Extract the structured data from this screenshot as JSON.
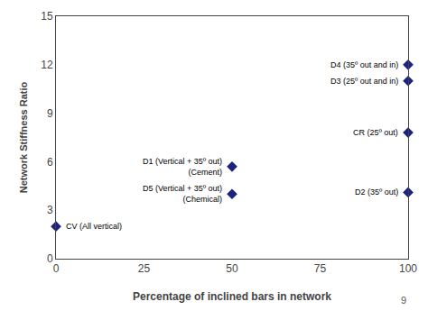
{
  "chart_data": {
    "type": "scatter",
    "x": [
      0,
      50,
      50,
      100,
      100,
      100,
      100
    ],
    "values": [
      2.0,
      5.7,
      4.0,
      4.1,
      7.8,
      11.0,
      12.0
    ],
    "color": "#1a237e",
    "marker": "diamond",
    "xlabel": "Percentage of inclined bars in network",
    "ylabel": "Network Stiffness Ratio",
    "xlim": [
      0,
      100
    ],
    "ylim": [
      0,
      15
    ],
    "xticks": [
      0,
      25,
      50,
      75,
      100
    ],
    "yticks": [
      0,
      3,
      6,
      9,
      12,
      15
    ],
    "grid": false,
    "annotations": [
      {
        "x": 0,
        "y": 2.0,
        "text": "CV (All vertical)"
      },
      {
        "x": 50,
        "y": 5.7,
        "text": "D1 (Vertical + 35º out)\n(Cement)"
      },
      {
        "x": 50,
        "y": 4.0,
        "text": "D5 (Vertical + 35º out)\n(Chemical)"
      },
      {
        "x": 100,
        "y": 4.1,
        "text": "D2 (35º out)"
      },
      {
        "x": 100,
        "y": 7.8,
        "text": "CR (25º out)"
      },
      {
        "x": 100,
        "y": 11.0,
        "text": "D3 (25º out and in)"
      },
      {
        "x": 100,
        "y": 12.0,
        "text": "D4 (35º out and in)"
      },
      {
        "text": "9"
      }
    ]
  }
}
